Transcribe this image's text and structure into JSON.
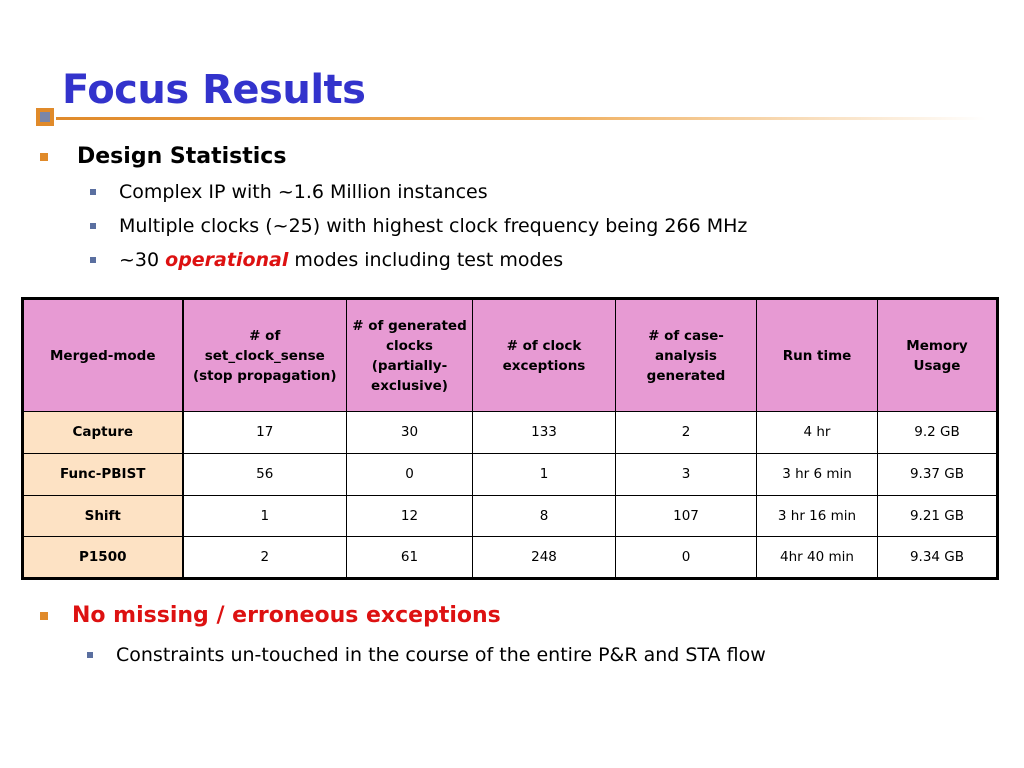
{
  "slide": {
    "title": "Focus Results",
    "bullets": {
      "design_statistics": "Design Statistics",
      "sub": [
        "Complex IP with ~1.6 Million instances",
        "Multiple clocks (~25) with highest clock frequency being 266 MHz"
      ],
      "modes_prefix": "~30 ",
      "modes_emph": "operational",
      "modes_suffix": " modes including test modes",
      "no_missing": "No missing / erroneous exceptions",
      "constraints": "Constraints un-touched in the course of the entire P&R and STA flow"
    },
    "accent_colors": {
      "title": "#3333cc",
      "bullet_square": "#e08a2a",
      "header_fill": "#e79ad3",
      "row_header_fill": "#fde2c4",
      "highlight_text": "#dd1111"
    }
  },
  "table": {
    "headers": [
      "Merged-mode",
      "# of set_clock_sense (stop propagation)",
      "# of generated clocks (partially-exclusive)",
      "# of clock exceptions",
      "# of case-analysis generated",
      "Run time",
      "Memory Usage"
    ],
    "rows": [
      [
        "Capture",
        "17",
        "30",
        "133",
        "2",
        "4 hr",
        "9.2 GB"
      ],
      [
        "Func-PBIST",
        "56",
        "0",
        "1",
        "3",
        "3 hr 6 min",
        "9.37 GB"
      ],
      [
        "Shift",
        "1",
        "12",
        "8",
        "107",
        "3 hr 16 min",
        "9.21 GB"
      ],
      [
        "P1500",
        "2",
        "61",
        "248",
        "0",
        "4hr 40 min",
        "9.34 GB"
      ]
    ]
  }
}
